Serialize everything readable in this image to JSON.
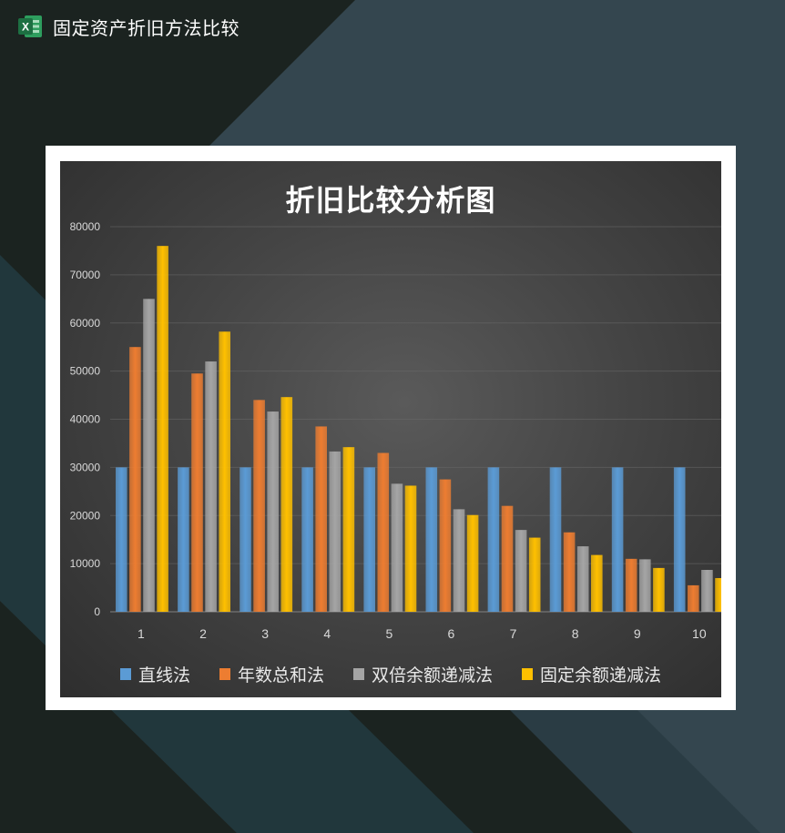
{
  "app": {
    "title": "固定资产折旧方法比较",
    "icon": "excel-icon",
    "icon_letter": "X"
  },
  "colors": {
    "background_dark": "#1b2320",
    "background_slate": "#34464f",
    "background_teal": "#21373c",
    "frame": "#ffffff"
  },
  "chart_data": {
    "type": "bar",
    "title": "折旧比较分析图",
    "xlabel": "",
    "ylabel": "",
    "ylim": [
      0,
      80000
    ],
    "yticks": [
      "0",
      "10000",
      "20000",
      "30000",
      "40000",
      "50000",
      "60000",
      "70000",
      "80000"
    ],
    "categories": [
      "1",
      "2",
      "3",
      "4",
      "5",
      "6",
      "7",
      "8",
      "9",
      "10"
    ],
    "series": [
      {
        "name": "直线法",
        "color": "#5b9bd5",
        "values": [
          30000,
          30000,
          30000,
          30000,
          30000,
          30000,
          30000,
          30000,
          30000,
          30000
        ]
      },
      {
        "name": "年数总和法",
        "color": "#ed7d31",
        "values": [
          55000,
          49500,
          44000,
          38500,
          33000,
          27500,
          22000,
          16500,
          11000,
          5500
        ]
      },
      {
        "name": "双倍余额递减法",
        "color": "#a5a5a5",
        "values": [
          65000,
          52000,
          41600,
          33300,
          26600,
          21300,
          17000,
          13600,
          10900,
          8700
        ]
      },
      {
        "name": "固定余额递减法",
        "color": "#ffc000",
        "values": [
          76000,
          58200,
          44600,
          34200,
          26200,
          20100,
          15400,
          11800,
          9100,
          7000
        ]
      }
    ],
    "grid": true,
    "legend_position": "bottom"
  }
}
